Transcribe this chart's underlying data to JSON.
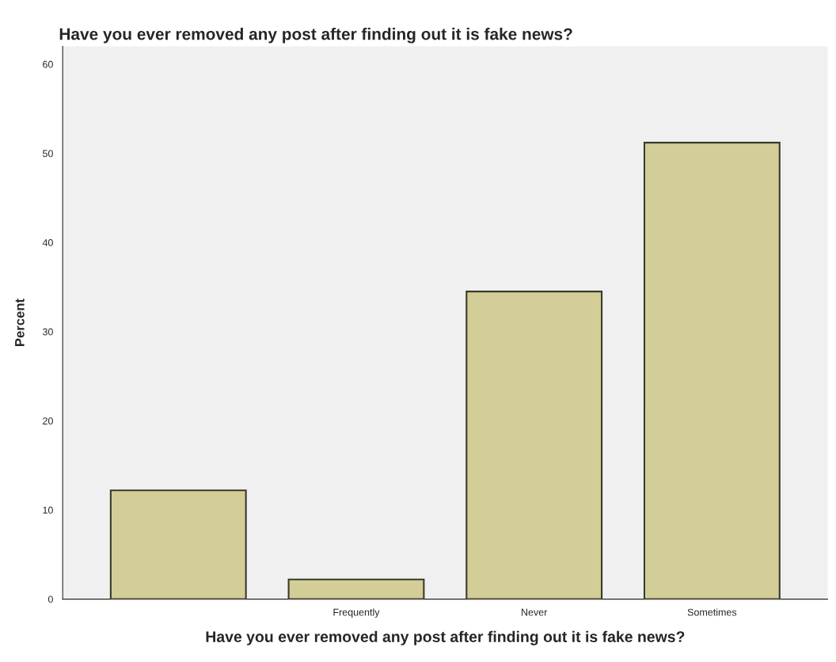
{
  "chart_data": {
    "type": "bar",
    "title": "Have you ever removed any post after finding out it is fake news?",
    "xlabel": "Have you ever removed any post after finding out it is fake news?",
    "ylabel": "Percent",
    "categories": [
      null,
      "Frequently",
      "Never",
      "Sometimes"
    ],
    "values": [
      12.2,
      2.2,
      34.5,
      51.2
    ],
    "color": "#d3ce97",
    "ylim": [
      0,
      62
    ],
    "yticks": [
      0,
      10,
      20,
      30,
      40,
      50,
      60
    ],
    "grid": false
  }
}
